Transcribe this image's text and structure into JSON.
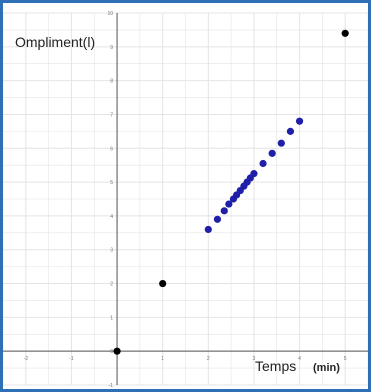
{
  "chart_data": {
    "type": "scatter",
    "ylabel": "Ompliment(l)",
    "xlabel_main": "Temps",
    "xlabel_unit": "(min)",
    "xlim": [
      -2.5,
      5.5
    ],
    "ylim": [
      -1,
      10
    ],
    "grid": true,
    "x_ticks": [
      -2,
      -1,
      0,
      1,
      2,
      3,
      4,
      5
    ],
    "y_ticks": [
      -1,
      0,
      1,
      2,
      3,
      4,
      5,
      6,
      7,
      8,
      9,
      10
    ],
    "series": [
      {
        "color": "#000000",
        "points": [
          [
            0,
            0
          ],
          [
            1,
            2
          ],
          [
            5,
            9.4
          ]
        ]
      },
      {
        "color": "#1f1fa8",
        "points": [
          [
            2,
            3.6
          ],
          [
            2.2,
            3.9
          ],
          [
            2.35,
            4.15
          ],
          [
            2.45,
            4.35
          ],
          [
            2.55,
            4.5
          ],
          [
            2.62,
            4.62
          ],
          [
            2.7,
            4.75
          ],
          [
            2.78,
            4.88
          ],
          [
            2.85,
            5.0
          ],
          [
            2.92,
            5.12
          ],
          [
            3.0,
            5.25
          ],
          [
            3.2,
            5.55
          ],
          [
            3.4,
            5.85
          ],
          [
            3.6,
            6.15
          ],
          [
            3.8,
            6.5
          ],
          [
            4.0,
            6.8
          ]
        ]
      }
    ],
    "colors": {
      "grid": "#e4e4e4",
      "axis": "#555555",
      "frame": "#2f6fb5"
    }
  }
}
